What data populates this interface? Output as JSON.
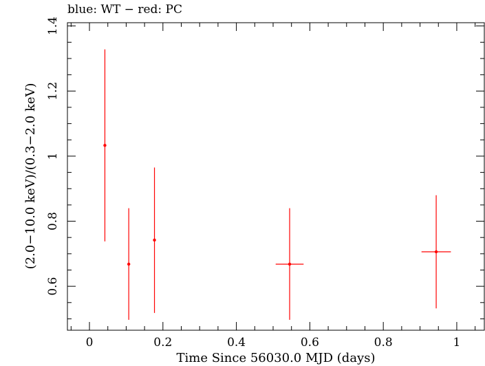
{
  "chart_data": {
    "type": "scatter",
    "title": "blue: WT − red: PC",
    "xlabel": "Time Since 56030.0 MJD (days)",
    "ylabel": "(2.0−10.0 keV)/(0.3−2.0 keV)",
    "xlim": [
      -0.06,
      1.075
    ],
    "ylim": [
      0.465,
      1.41
    ],
    "x_ticks": [
      {
        "value": 0,
        "label": "0"
      },
      {
        "value": 0.2,
        "label": "0.2"
      },
      {
        "value": 0.4,
        "label": "0.4"
      },
      {
        "value": 0.6,
        "label": "0.6"
      },
      {
        "value": 0.8,
        "label": "0.8"
      },
      {
        "value": 1.0,
        "label": "1"
      }
    ],
    "y_ticks": [
      {
        "value": 0.6,
        "label": "0.6"
      },
      {
        "value": 0.8,
        "label": "0.8"
      },
      {
        "value": 1.0,
        "label": "1"
      },
      {
        "value": 1.2,
        "label": "1.2"
      },
      {
        "value": 1.4,
        "label": "1.4"
      }
    ],
    "grid": false,
    "series": [
      {
        "color": "#ff0000",
        "points": [
          {
            "x": 0.042,
            "y": 1.033,
            "xerr": 0.0,
            "ylo": 0.738,
            "yhi": 1.328
          },
          {
            "x": 0.107,
            "y": 0.668,
            "xerr": 0.0,
            "ylo": 0.497,
            "yhi": 0.84
          },
          {
            "x": 0.177,
            "y": 0.742,
            "xerr": 0.0,
            "ylo": 0.518,
            "yhi": 0.965
          },
          {
            "x": 0.545,
            "y": 0.668,
            "xerr": 0.038,
            "ylo": 0.497,
            "yhi": 0.84
          },
          {
            "x": 0.944,
            "y": 0.706,
            "xerr": 0.04,
            "ylo": 0.532,
            "yhi": 0.88
          }
        ]
      }
    ]
  }
}
